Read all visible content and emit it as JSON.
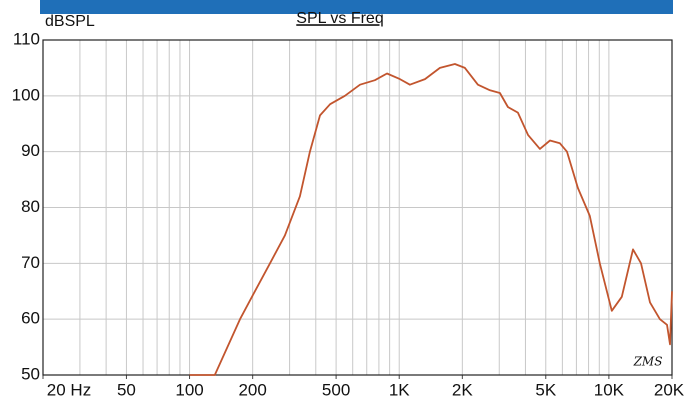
{
  "chart_data": {
    "type": "line",
    "title": "SPL vs Freq",
    "y_label": "dBSPL",
    "annotation": "ZMS",
    "x": [
      100,
      132,
      174,
      205,
      242,
      285,
      336,
      375,
      419,
      468,
      551,
      650,
      766,
      874,
      1007,
      1125,
      1327,
      1564,
      1844,
      2057,
      2372,
      2711,
      3022,
      3300,
      3683,
      4113,
      4690,
      5237,
      5838,
      6310,
      7118,
      8113,
      9055,
      10330,
      11530,
      13030,
      14230,
      15710,
      17520,
      18940,
      19570,
      20000
    ],
    "values": [
      50,
      50,
      60,
      65,
      70,
      75,
      82,
      90,
      96.5,
      98.5,
      100,
      102,
      102.8,
      104,
      103,
      102,
      103,
      105,
      105.7,
      105,
      102,
      101,
      100.5,
      98,
      97,
      93,
      90.5,
      92,
      91.5,
      90,
      83.5,
      78.5,
      70,
      61.5,
      64,
      72.5,
      70,
      63,
      60,
      59,
      55.5,
      65
    ],
    "color": "#c2552e",
    "log_x": true,
    "xlim": [
      20,
      20000
    ],
    "xticks": [
      {
        "value": 20,
        "label": "20 Hz"
      },
      50,
      100,
      200,
      500,
      {
        "value": 1000,
        "label": "1K"
      },
      {
        "value": 2000,
        "label": "2K"
      },
      {
        "value": 5000,
        "label": "5K"
      },
      {
        "value": 10000,
        "label": "10K"
      },
      {
        "value": 20000,
        "label": "20K"
      }
    ],
    "xgrid": [
      30,
      40,
      50,
      60,
      70,
      80,
      90,
      100,
      200,
      300,
      400,
      500,
      600,
      700,
      800,
      900,
      1000,
      2000,
      3000,
      4000,
      5000,
      6000,
      7000,
      8000,
      9000,
      10000
    ],
    "ylim": [
      50,
      110
    ],
    "yticks": [
      50,
      60,
      70,
      80,
      90,
      100,
      110
    ],
    "grid": true
  }
}
